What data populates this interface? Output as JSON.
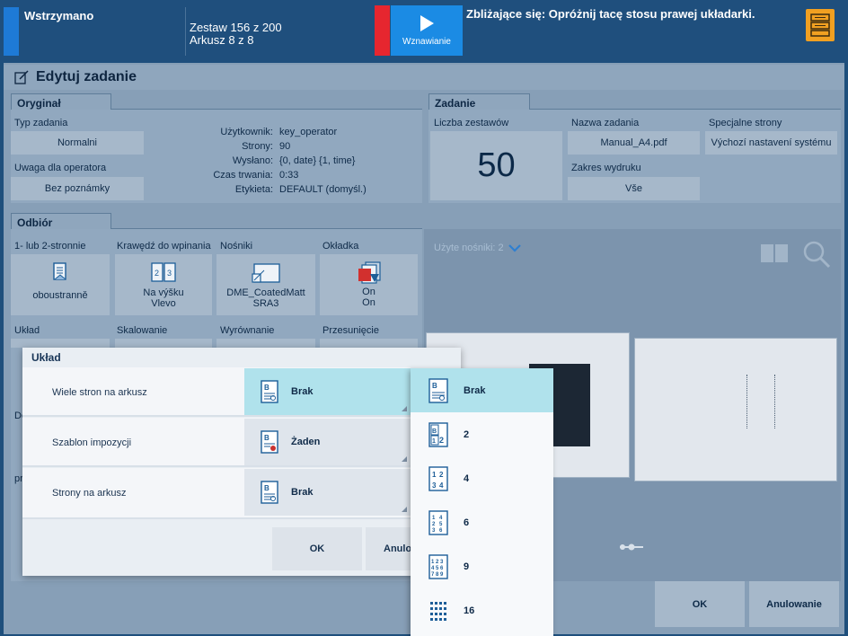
{
  "topbar": {
    "status": "Wstrzymano",
    "set_progress": "Zestaw 156 z 200",
    "sheet_progress": "Arkusz 8 z 8",
    "resume_label": "Wznawianie",
    "message": "Zbliżające się: Opróżnij tacę stosu prawej układarki."
  },
  "window": {
    "title": "Edytuj zadanie"
  },
  "original": {
    "tab": "Oryginał",
    "job_type_label": "Typ zadania",
    "job_type_value": "Normalni",
    "operator_note_label": "Uwaga dla operatora",
    "operator_note_value": "Bez poznámky",
    "info": [
      {
        "key": "Użytkownik:",
        "value": "key_operator"
      },
      {
        "key": "Strony:",
        "value": "90"
      },
      {
        "key": "Wysłano:",
        "value": "{0, date} {1, time}"
      },
      {
        "key": "Czas trwania:",
        "value": "0:33"
      },
      {
        "key": "Etykieta:",
        "value": "DEFAULT (domyśl.)"
      }
    ]
  },
  "job": {
    "tab": "Zadanie",
    "sets_label": "Liczba zestawów",
    "sets_value": "50",
    "name_label": "Nazwa zadania",
    "name_value": "Manual_A4.pdf",
    "range_label": "Zakres wydruku",
    "range_value": "Vše",
    "special_label": "Specjalne strony",
    "special_value": "Výchozí nastavení systému"
  },
  "output": {
    "tab": "Odbiór",
    "tiles": [
      {
        "label": "1- lub 2-stronnie",
        "line1": "oboustranně",
        "line2": ""
      },
      {
        "label": "Krawędź do wpinania",
        "line1": "Na výšku",
        "line2": "Vlevo"
      },
      {
        "label": "Nośniki",
        "line1": "DME_CoatedMatt",
        "line2": "SRA3"
      },
      {
        "label": "Okładka",
        "line1": "On",
        "line2": "On"
      }
    ],
    "row2_labels": [
      "Układ",
      "Skalowanie",
      "Wyrównanie",
      "Przesunięcie"
    ],
    "side_fragment_1": "De",
    "side_fragment_2": "pr",
    "used_media": "Użyte nośniki: 2"
  },
  "dialog": {
    "title": "Układ",
    "rows": [
      {
        "label": "Wiele stron na arkusz",
        "value": "Brak"
      },
      {
        "label": "Szablon impozycji",
        "value": "Żaden"
      },
      {
        "label": "Strony na arkusz",
        "value": "Brak"
      }
    ],
    "ok": "OK",
    "cancel": "Anulo"
  },
  "dropdown": {
    "options": [
      "Brak",
      "2",
      "4",
      "6",
      "9",
      "16"
    ],
    "selected": "Brak"
  },
  "footer": {
    "ok": "OK",
    "cancel": "Anulowanie"
  },
  "colors": {
    "topbar": "#1f4f7d",
    "accent_blue": "#1b8be4",
    "alert_red": "#e6262f",
    "stacker_orange": "#f1a021",
    "selected_option": "#b0e2ec"
  }
}
